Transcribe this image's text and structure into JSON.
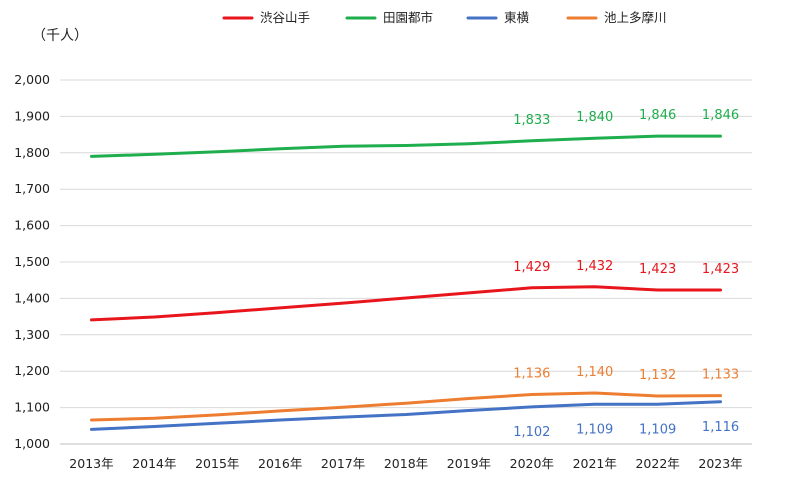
{
  "chart_data": {
    "type": "line",
    "unit_label": "（千人）",
    "categories": [
      "2013年",
      "2014年",
      "2015年",
      "2016年",
      "2017年",
      "2018年",
      "2019年",
      "2020年",
      "2021年",
      "2022年",
      "2023年"
    ],
    "ylim": [
      1000,
      2000
    ],
    "yticks": [
      1000,
      1100,
      1200,
      1300,
      1400,
      1500,
      1600,
      1700,
      1800,
      1900,
      2000
    ],
    "ytick_labels": [
      "1,000",
      "1,100",
      "1,200",
      "1,300",
      "1,400",
      "1,500",
      "1,600",
      "1,700",
      "1,800",
      "1,900",
      "2,000"
    ],
    "grid": true,
    "legend_position": "top",
    "series": [
      {
        "name": "渋谷山手",
        "color": "#e8161c",
        "values": [
          1341,
          1349,
          1361,
          1374,
          1387,
          1401,
          1415,
          1429,
          1432,
          1423,
          1423
        ],
        "labels": [
          null,
          null,
          null,
          null,
          null,
          null,
          null,
          "1,429",
          "1,432",
          "1,423",
          "1,423"
        ],
        "label_position": "above"
      },
      {
        "name": "田園都市",
        "color": "#1fae4d",
        "values": [
          1790,
          1796,
          1803,
          1811,
          1818,
          1820,
          1825,
          1833,
          1840,
          1846,
          1846
        ],
        "labels": [
          null,
          null,
          null,
          null,
          null,
          null,
          null,
          "1,833",
          "1,840",
          "1,846",
          "1,846"
        ],
        "label_position": "above"
      },
      {
        "name": "東横",
        "color": "#4472c4",
        "values": [
          1040,
          1048,
          1057,
          1066,
          1074,
          1081,
          1092,
          1102,
          1109,
          1109,
          1116
        ],
        "labels": [
          null,
          null,
          null,
          null,
          null,
          null,
          null,
          "1,102",
          "1,109",
          "1,109",
          "1,116"
        ],
        "label_position": "below"
      },
      {
        "name": "池上多摩川",
        "color": "#ed7d31",
        "values": [
          1066,
          1071,
          1080,
          1091,
          1101,
          1112,
          1125,
          1136,
          1140,
          1132,
          1133
        ],
        "labels": [
          null,
          null,
          null,
          null,
          null,
          null,
          null,
          "1,136",
          "1,140",
          "1,132",
          "1,133"
        ],
        "label_position": "above"
      }
    ]
  }
}
